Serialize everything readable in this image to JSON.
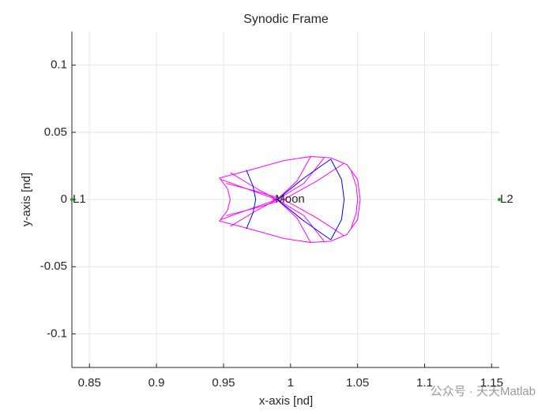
{
  "chart_data": {
    "type": "line",
    "title": "Synodic Frame",
    "x_label": "x-axis [nd]",
    "y_label": "y-axis [nd]",
    "xlim": [
      0.8369,
      1.1557
    ],
    "ylim": [
      -0.125,
      0.125
    ],
    "xticks": [
      0.85,
      0.9,
      0.95,
      1,
      1.05,
      1.1,
      1.15
    ],
    "yticks": [
      -0.1,
      -0.05,
      0,
      0.05,
      0.1
    ],
    "grid": true,
    "series": [
      {
        "color": "#ff00ff",
        "x": [
          0.947,
          0.97,
          0.995,
          1.015,
          1.03,
          1.042,
          1.05,
          1.052,
          1.05,
          1.042,
          1.03,
          1.015,
          0.995,
          0.97,
          0.947,
          0.953,
          0.955,
          0.953,
          0.947
        ],
        "y": [
          0.016,
          0.022,
          0.029,
          0.032,
          0.031,
          0.026,
          0.015,
          0,
          -0.015,
          -0.026,
          -0.031,
          -0.032,
          -0.029,
          -0.022,
          -0.016,
          -0.008,
          0,
          0.008,
          0.016
        ]
      },
      {
        "color": "#ff00ff",
        "x": [
          0.948,
          0.97,
          0.99,
          1.01,
          1.025
        ],
        "y": [
          0.015,
          0.007,
          0,
          -0.012,
          -0.031
        ]
      },
      {
        "color": "#ff00ff",
        "x": [
          0.948,
          0.97,
          0.99,
          1.01,
          1.025
        ],
        "y": [
          -0.015,
          -0.007,
          0,
          0.012,
          0.031
        ]
      },
      {
        "color": "#ff00ff",
        "x": [
          0.955,
          0.975,
          0.99,
          1.005,
          1.015
        ],
        "y": [
          0.02,
          0.008,
          0,
          -0.014,
          -0.032
        ]
      },
      {
        "color": "#ff00ff",
        "x": [
          0.955,
          0.975,
          0.99,
          1.005,
          1.015
        ],
        "y": [
          -0.02,
          -0.008,
          0,
          0.014,
          0.032
        ]
      },
      {
        "color": "#ff00ff",
        "x": [
          0.952,
          0.975,
          0.995,
          1.02,
          1.04
        ],
        "y": [
          0.012,
          0.006,
          0,
          -0.014,
          -0.027
        ]
      },
      {
        "color": "#ff00ff",
        "x": [
          0.952,
          0.975,
          0.995,
          1.02,
          1.04
        ],
        "y": [
          -0.012,
          -0.006,
          0,
          0.014,
          0.027
        ]
      },
      {
        "color": "#ff00ff",
        "x": [
          1.045,
          1.049,
          1.05,
          1.049,
          1.045
        ],
        "y": [
          0.022,
          0.01,
          0,
          -0.01,
          -0.022
        ]
      },
      {
        "color": "#0000ff",
        "x": [
          0.967,
          0.972,
          0.974,
          0.972,
          0.967
        ],
        "y": [
          0.022,
          0.01,
          0,
          -0.01,
          -0.022
        ]
      },
      {
        "color": "#0000ff",
        "x": [
          1.03,
          1.038,
          1.04,
          1.038,
          1.03
        ],
        "y": [
          0.03,
          0.015,
          0,
          -0.015,
          -0.03
        ]
      },
      {
        "color": "#0000ff",
        "x": [
          0.99,
          1.01,
          1.03
        ],
        "y": [
          0,
          0.016,
          0.03
        ]
      },
      {
        "color": "#0000ff",
        "x": [
          0.99,
          1.01,
          1.03
        ],
        "y": [
          0,
          -0.016,
          -0.03
        ]
      }
    ],
    "points": [
      {
        "label": "L1",
        "x": 0.8369,
        "y": 0,
        "color": "#00b400"
      },
      {
        "label": "Moon",
        "x": 0.9879,
        "y": 0,
        "color": "#ff00ff"
      },
      {
        "label": "L2",
        "x": 1.1557,
        "y": 0,
        "color": "#00b400"
      }
    ]
  },
  "watermark": "公众号 · 天天Matlab"
}
